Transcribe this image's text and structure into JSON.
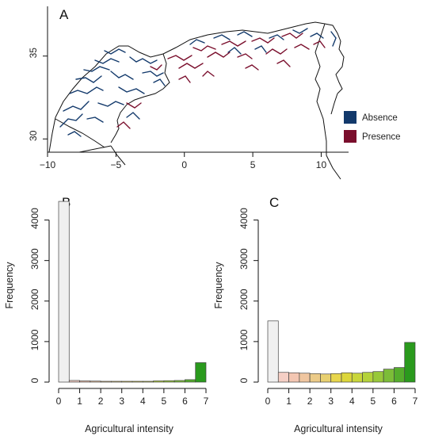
{
  "colors": {
    "absence": "#12396b",
    "presence": "#7a0e2c",
    "outline": "#111111"
  },
  "chart_data": [
    {
      "type": "map",
      "panel_label": "A",
      "x_ticks": [
        "−10",
        "−5",
        "0",
        "5",
        "10"
      ],
      "x_tick_values": [
        -10,
        -5,
        0,
        5,
        10
      ],
      "y_ticks": [
        "30",
        "35"
      ],
      "y_tick_values": [
        30,
        35
      ],
      "xlim": [
        -10,
        12
      ],
      "ylim": [
        29.2,
        38
      ],
      "legend": [
        {
          "label": "Absence",
          "color": "#12396b"
        },
        {
          "label": "Presence",
          "color": "#7a0e2c"
        }
      ],
      "legend_position": "right"
    },
    {
      "type": "bar",
      "panel_label": "B",
      "xlabel": "Agricultural intensity",
      "ylabel": "Frequency",
      "x_ticks": [
        "0",
        "1",
        "2",
        "3",
        "4",
        "5",
        "6",
        "7"
      ],
      "y_ticks": [
        "0",
        "1000",
        "2000",
        "3000",
        "4000"
      ],
      "xlim": [
        0,
        7
      ],
      "ylim": [
        0,
        4500
      ],
      "bin_width": 0.5,
      "bin_starts": [
        0,
        0.5,
        1,
        1.5,
        2,
        2.5,
        3,
        3.5,
        4,
        4.5,
        5,
        5.5,
        6,
        6.5
      ],
      "values": [
        4460,
        40,
        30,
        25,
        20,
        20,
        20,
        20,
        20,
        30,
        35,
        40,
        60,
        480
      ],
      "colors": [
        "#f0f0f0",
        "#f5cfc5",
        "#f3c6b2",
        "#f0c6a0",
        "#eccb88",
        "#e8d070",
        "#e8d64c",
        "#dcd63a",
        "#c9d63a",
        "#b4d23a",
        "#98c83a",
        "#7cbd38",
        "#55ad2c",
        "#2a9a1d"
      ]
    },
    {
      "type": "bar",
      "panel_label": "C",
      "xlabel": "Agricultural intensity",
      "ylabel": "Frequency",
      "x_ticks": [
        "0",
        "1",
        "2",
        "3",
        "4",
        "5",
        "6",
        "7"
      ],
      "y_ticks": [
        "0",
        "1000",
        "2000",
        "3000",
        "4000"
      ],
      "xlim": [
        0,
        7
      ],
      "ylim": [
        0,
        4500
      ],
      "bin_width": 0.5,
      "bin_starts": [
        0,
        0.5,
        1,
        1.5,
        2,
        2.5,
        3,
        3.5,
        4,
        4.5,
        5,
        5.5,
        6,
        6.5
      ],
      "values": [
        1510,
        240,
        230,
        220,
        210,
        200,
        210,
        230,
        220,
        240,
        260,
        320,
        360,
        980
      ],
      "colors": [
        "#f0f0f0",
        "#f5cfc5",
        "#f3c6b2",
        "#f0c6a0",
        "#eccb88",
        "#e8d070",
        "#e8d64c",
        "#dcd63a",
        "#c9d63a",
        "#b4d23a",
        "#98c83a",
        "#7cbd38",
        "#55ad2c",
        "#2a9a1d"
      ]
    }
  ]
}
